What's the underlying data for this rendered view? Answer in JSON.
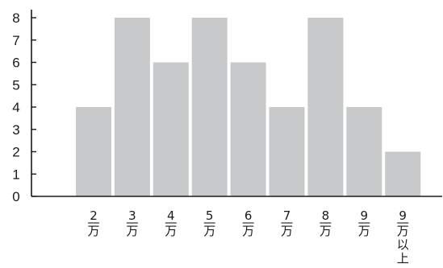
{
  "chart_data": {
    "type": "bar",
    "categories": [
      [
        "2",
        "万"
      ],
      [
        "3",
        "万"
      ],
      [
        "4",
        "万"
      ],
      [
        "5",
        "万"
      ],
      [
        "6",
        "万"
      ],
      [
        "7",
        "万"
      ],
      [
        "8",
        "万"
      ],
      [
        "9",
        "万"
      ],
      [
        "9",
        "万",
        "以",
        "上"
      ]
    ],
    "values": [
      4,
      8,
      6,
      8,
      6,
      4,
      8,
      4,
      2
    ],
    "ylim": [
      0,
      8
    ],
    "yticks": [
      0,
      1,
      2,
      3,
      4,
      5,
      6,
      7,
      8
    ],
    "grid": false,
    "bar_color": "#c8c9ca",
    "axis_color": "#1a1a1a"
  }
}
